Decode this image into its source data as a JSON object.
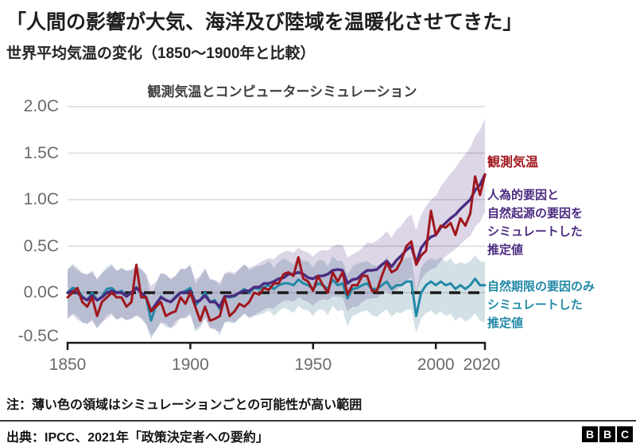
{
  "header": {
    "title": "「人間の影響が大気、海洋及び陸域を温暖化させてきた」",
    "subtitle": "世界平均気温の変化（1850〜1900年と比較）"
  },
  "legend": {
    "observed": {
      "label": "観測気温",
      "color": "#a0161c"
    },
    "human_natural": {
      "label": "人為的要因と\n自然起源の要因を\nシミュレートした\n推定値",
      "color": "#4b2a80"
    },
    "natural": {
      "label": "自然期限の要因のみ\nシミュレートした\n推定値",
      "color": "#2289a6"
    }
  },
  "footer": {
    "note": "注：薄い色の領域はシミュレーションごとの可能性が高い範囲",
    "source": "出典：IPCC、2021年「政策決定者への要約」",
    "bbc": [
      "B",
      "B",
      "C"
    ]
  },
  "chart_data": {
    "type": "line",
    "title": "観測気温とコンピューターシミュレーション",
    "x_axis": {
      "ticks": [
        1850,
        1900,
        1950,
        2000,
        2020
      ],
      "range": [
        1850,
        2020
      ]
    },
    "y_axis": {
      "tick_labels": [
        "2.0C",
        "1.5C",
        "1.0C",
        "0.5C",
        "0.0C",
        "-0.5C"
      ],
      "tick_values": [
        2.0,
        1.5,
        1.0,
        0.5,
        0.0,
        -0.5
      ],
      "grid_values": [
        2.0,
        1.5,
        1.0,
        0.5,
        0.0
      ],
      "range": [
        -0.5,
        2.0
      ],
      "unit": "C"
    },
    "zero_line": {
      "style": "dashed",
      "value": 0,
      "color": "#1a1a1a"
    },
    "grid_color": "#d9d9d9",
    "axis_color": "#1a1a1a",
    "years": [
      1850,
      1852,
      1854,
      1856,
      1858,
      1860,
      1862,
      1864,
      1866,
      1868,
      1870,
      1872,
      1874,
      1876,
      1878,
      1880,
      1882,
      1884,
      1886,
      1888,
      1890,
      1892,
      1894,
      1896,
      1898,
      1900,
      1902,
      1904,
      1906,
      1908,
      1910,
      1912,
      1914,
      1916,
      1918,
      1920,
      1922,
      1924,
      1926,
      1928,
      1930,
      1932,
      1934,
      1936,
      1938,
      1940,
      1942,
      1944,
      1946,
      1948,
      1950,
      1952,
      1954,
      1956,
      1958,
      1960,
      1962,
      1964,
      1966,
      1968,
      1970,
      1972,
      1974,
      1976,
      1978,
      1980,
      1982,
      1984,
      1986,
      1988,
      1990,
      1992,
      1994,
      1996,
      1998,
      2000,
      2002,
      2004,
      2006,
      2008,
      2010,
      2012,
      2014,
      2016,
      2018,
      2020
    ],
    "series": [
      {
        "id": "observed",
        "name": "観測気温",
        "color": "#a0161c",
        "width": 3,
        "values": [
          -0.05,
          0.0,
          0.05,
          -0.1,
          -0.15,
          -0.05,
          -0.25,
          -0.1,
          -0.05,
          0.0,
          -0.05,
          -0.05,
          -0.15,
          -0.1,
          0.3,
          -0.05,
          -0.05,
          -0.2,
          -0.15,
          -0.1,
          -0.25,
          -0.22,
          -0.2,
          -0.05,
          -0.12,
          0.0,
          -0.15,
          -0.3,
          -0.15,
          -0.3,
          -0.28,
          -0.25,
          -0.05,
          -0.25,
          -0.2,
          -0.12,
          -0.15,
          -0.1,
          0.0,
          -0.02,
          0.05,
          0.03,
          0.1,
          0.1,
          0.2,
          0.22,
          0.18,
          0.38,
          0.15,
          0.12,
          0.02,
          0.18,
          0.08,
          0.0,
          0.22,
          0.12,
          0.22,
          -0.02,
          0.08,
          0.08,
          0.18,
          0.18,
          0.02,
          0.02,
          0.18,
          0.32,
          0.22,
          0.25,
          0.35,
          0.5,
          0.55,
          0.3,
          0.4,
          0.45,
          0.88,
          0.62,
          0.72,
          0.7,
          0.75,
          0.62,
          0.8,
          0.72,
          0.85,
          1.25,
          1.05,
          1.27
        ]
      },
      {
        "id": "human-natural-sim",
        "name": "人為的要因と自然起源の要因をシミュレートした推定値",
        "color": "#4b2a80",
        "width": 3.4,
        "band_color": "rgba(78,48,128,0.20)",
        "values": [
          0.0,
          0.02,
          0.0,
          -0.05,
          -0.08,
          -0.03,
          -0.08,
          -0.05,
          0.0,
          0.02,
          0.0,
          0.0,
          -0.04,
          0.0,
          0.05,
          0.0,
          -0.05,
          -0.2,
          -0.12,
          -0.05,
          -0.08,
          -0.1,
          -0.05,
          0.0,
          0.0,
          0.02,
          -0.1,
          -0.08,
          -0.03,
          -0.1,
          -0.1,
          -0.15,
          -0.04,
          -0.04,
          -0.03,
          0.0,
          0.02,
          0.02,
          0.06,
          0.06,
          0.1,
          0.1,
          0.12,
          0.15,
          0.16,
          0.2,
          0.2,
          0.22,
          0.2,
          0.16,
          0.15,
          0.18,
          0.18,
          0.2,
          0.24,
          0.25,
          0.24,
          0.1,
          0.14,
          0.15,
          0.2,
          0.24,
          0.24,
          0.25,
          0.3,
          0.34,
          0.28,
          0.35,
          0.4,
          0.46,
          0.5,
          0.32,
          0.48,
          0.55,
          0.6,
          0.62,
          0.7,
          0.75,
          0.8,
          0.84,
          0.9,
          0.95,
          1.0,
          1.1,
          1.16,
          1.27
        ],
        "band_upper_offset": [
          0.25,
          0.27,
          0.24,
          0.26,
          0.28,
          0.25,
          0.23,
          0.26,
          0.25,
          0.27,
          0.24,
          0.26,
          0.28,
          0.25,
          0.23,
          0.26,
          0.25,
          0.27,
          0.24,
          0.26,
          0.28,
          0.25,
          0.23,
          0.26,
          0.25,
          0.27,
          0.24,
          0.26,
          0.28,
          0.25,
          0.23,
          0.26,
          0.25,
          0.27,
          0.24,
          0.26,
          0.28,
          0.25,
          0.23,
          0.26,
          0.25,
          0.27,
          0.24,
          0.26,
          0.28,
          0.25,
          0.23,
          0.26,
          0.25,
          0.27,
          0.24,
          0.26,
          0.28,
          0.25,
          0.26,
          0.27,
          0.27,
          0.28,
          0.27,
          0.29,
          0.28,
          0.3,
          0.29,
          0.31,
          0.3,
          0.32,
          0.31,
          0.33,
          0.32,
          0.34,
          0.34,
          0.35,
          0.36,
          0.38,
          0.4,
          0.42,
          0.44,
          0.46,
          0.48,
          0.5,
          0.52,
          0.54,
          0.56,
          0.58,
          0.59,
          0.6
        ],
        "band_lower_offset": [
          0.28,
          0.26,
          0.29,
          0.27,
          0.25,
          0.28,
          0.3,
          0.27,
          0.28,
          0.26,
          0.29,
          0.27,
          0.25,
          0.28,
          0.3,
          0.27,
          0.28,
          0.26,
          0.29,
          0.27,
          0.25,
          0.28,
          0.3,
          0.27,
          0.28,
          0.26,
          0.29,
          0.27,
          0.25,
          0.28,
          0.3,
          0.27,
          0.28,
          0.26,
          0.29,
          0.27,
          0.25,
          0.28,
          0.3,
          0.27,
          0.28,
          0.26,
          0.29,
          0.27,
          0.25,
          0.28,
          0.3,
          0.27,
          0.28,
          0.26,
          0.29,
          0.27,
          0.25,
          0.28,
          0.28,
          0.29,
          0.29,
          0.3,
          0.29,
          0.3,
          0.3,
          0.31,
          0.3,
          0.31,
          0.31,
          0.32,
          0.31,
          0.32,
          0.32,
          0.33,
          0.33,
          0.33,
          0.34,
          0.34,
          0.35,
          0.35,
          0.36,
          0.36,
          0.37,
          0.37,
          0.38,
          0.38,
          0.39,
          0.39,
          0.4,
          0.4
        ]
      },
      {
        "id": "natural-sim",
        "name": "自然期限の要因のみシミュレートした推定値",
        "color": "#2289a6",
        "width": 3,
        "band_color": "rgba(36,100,130,0.20)",
        "values": [
          0.0,
          0.05,
          0.04,
          -0.04,
          -0.08,
          0.0,
          -0.08,
          -0.04,
          0.04,
          0.05,
          0.0,
          0.02,
          -0.04,
          0.0,
          0.06,
          0.0,
          -0.05,
          -0.3,
          -0.14,
          -0.04,
          -0.08,
          -0.1,
          -0.04,
          0.0,
          0.02,
          0.05,
          -0.14,
          -0.08,
          0.0,
          -0.1,
          -0.08,
          -0.18,
          -0.04,
          -0.05,
          -0.04,
          0.0,
          0.04,
          0.0,
          0.05,
          0.04,
          0.06,
          0.08,
          0.04,
          0.08,
          0.1,
          0.1,
          0.08,
          0.14,
          0.1,
          0.08,
          0.04,
          0.1,
          0.08,
          0.04,
          0.14,
          0.08,
          0.1,
          -0.06,
          0.04,
          0.05,
          0.08,
          0.1,
          0.04,
          0.04,
          0.08,
          0.12,
          0.04,
          0.08,
          0.08,
          0.12,
          0.12,
          -0.25,
          0.0,
          0.08,
          0.12,
          0.08,
          0.12,
          0.08,
          0.1,
          0.04,
          0.08,
          0.04,
          0.08,
          0.15,
          0.08,
          0.08
        ],
        "band_upper_offset": [
          0.24,
          0.26,
          0.23,
          0.25,
          0.27,
          0.24,
          0.22,
          0.25,
          0.24,
          0.26,
          0.23,
          0.25,
          0.27,
          0.24,
          0.22,
          0.25,
          0.24,
          0.26,
          0.23,
          0.25,
          0.27,
          0.24,
          0.22,
          0.25,
          0.24,
          0.26,
          0.23,
          0.25,
          0.27,
          0.24,
          0.22,
          0.25,
          0.24,
          0.26,
          0.23,
          0.25,
          0.27,
          0.24,
          0.22,
          0.25,
          0.24,
          0.26,
          0.23,
          0.25,
          0.27,
          0.24,
          0.22,
          0.25,
          0.24,
          0.26,
          0.23,
          0.25,
          0.27,
          0.24,
          0.25,
          0.26,
          0.24,
          0.25,
          0.24,
          0.26,
          0.25,
          0.24,
          0.26,
          0.25,
          0.24,
          0.26,
          0.25,
          0.24,
          0.26,
          0.25,
          0.26,
          0.25,
          0.27,
          0.26,
          0.25,
          0.27,
          0.26,
          0.25,
          0.27,
          0.26,
          0.25,
          0.27,
          0.26,
          0.25,
          0.26,
          0.25
        ],
        "band_lower_offset": [
          0.28,
          0.27,
          0.29,
          0.28,
          0.26,
          0.28,
          0.3,
          0.28,
          0.28,
          0.27,
          0.29,
          0.28,
          0.26,
          0.28,
          0.3,
          0.28,
          0.3,
          0.2,
          0.26,
          0.28,
          0.29,
          0.28,
          0.26,
          0.28,
          0.28,
          0.27,
          0.28,
          0.3,
          0.26,
          0.28,
          0.3,
          0.28,
          0.28,
          0.27,
          0.29,
          0.28,
          0.26,
          0.28,
          0.3,
          0.28,
          0.28,
          0.27,
          0.29,
          0.28,
          0.26,
          0.28,
          0.3,
          0.28,
          0.28,
          0.27,
          0.29,
          0.28,
          0.26,
          0.28,
          0.28,
          0.28,
          0.28,
          0.3,
          0.29,
          0.28,
          0.28,
          0.29,
          0.28,
          0.3,
          0.29,
          0.3,
          0.3,
          0.29,
          0.3,
          0.3,
          0.3,
          0.18,
          0.28,
          0.3,
          0.31,
          0.32,
          0.32,
          0.33,
          0.33,
          0.34,
          0.34,
          0.35,
          0.36,
          0.37,
          0.38,
          0.4
        ]
      }
    ]
  }
}
